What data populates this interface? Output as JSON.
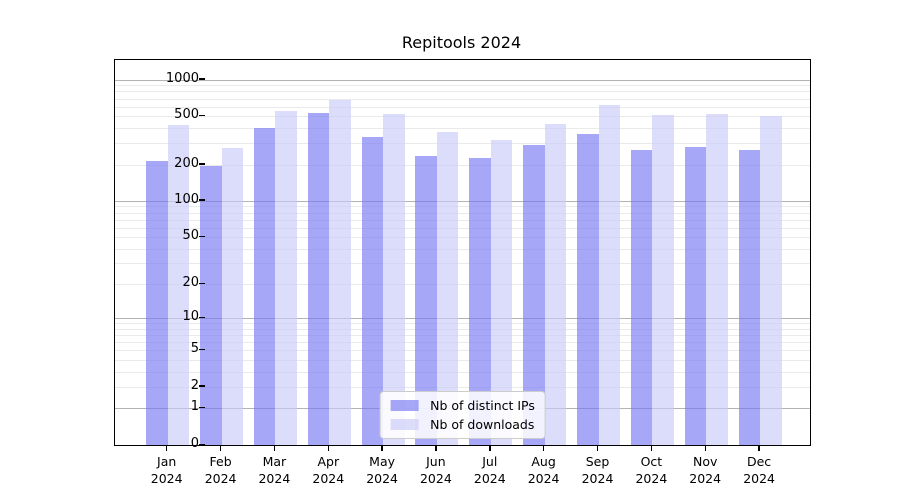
{
  "title": "Repitools 2024",
  "chart_data": {
    "type": "bar",
    "title": "Repitools 2024",
    "categories": [
      "Jan",
      "Feb",
      "Mar",
      "Apr",
      "May",
      "Jun",
      "Jul",
      "Aug",
      "Sep",
      "Oct",
      "Nov",
      "Dec"
    ],
    "x_year_label": "2024",
    "series": [
      {
        "name": "Nb of distinct IPs",
        "color": "#7878f3",
        "alpha": 0.65,
        "values": [
          213,
          195,
          400,
          530,
          335,
          235,
          225,
          290,
          360,
          265,
          280,
          265
        ]
      },
      {
        "name": "Nb of downloads",
        "color": "#c9c9f9",
        "alpha": 0.65,
        "values": [
          420,
          275,
          550,
          680,
          520,
          370,
          320,
          435,
          625,
          512,
          525,
          505
        ]
      }
    ],
    "y_scale": "log1p",
    "y_top": 1450,
    "yticks_major": [
      0,
      1,
      2,
      5,
      10,
      20,
      50,
      100,
      200,
      500,
      1000
    ],
    "yticks_decade": [
      1,
      10,
      100,
      1000
    ],
    "yticks_minor": [
      3,
      4,
      6,
      7,
      8,
      9,
      30,
      40,
      60,
      70,
      80,
      90,
      300,
      400,
      600,
      700,
      800,
      900
    ],
    "grid": "on",
    "legend_position": "lower center"
  }
}
